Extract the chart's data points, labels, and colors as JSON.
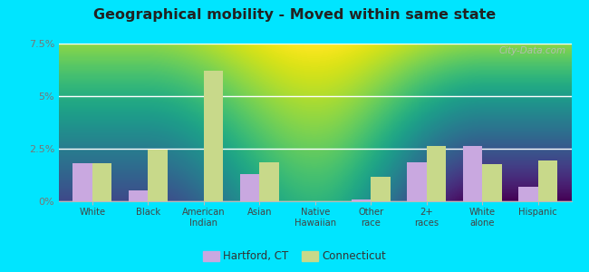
{
  "title": "Geographical mobility - Moved within same state",
  "categories": [
    "White",
    "Black",
    "American\nIndian",
    "Asian",
    "Native\nHawaiian",
    "Other\nrace",
    "2+\nraces",
    "White\nalone",
    "Hispanic"
  ],
  "hartford_values": [
    1.8,
    0.5,
    0.0,
    1.3,
    0.0,
    0.1,
    1.85,
    2.65,
    0.7
  ],
  "connecticut_values": [
    1.8,
    2.45,
    6.2,
    1.85,
    0.0,
    1.15,
    2.65,
    1.75,
    1.95
  ],
  "hartford_color": "#c9a8e0",
  "connecticut_color": "#c8d98a",
  "ylim": [
    0,
    7.5
  ],
  "yticks": [
    0,
    2.5,
    5.0,
    7.5
  ],
  "ytick_labels": [
    "0%",
    "2.5%",
    "5%",
    "7.5%"
  ],
  "outer_background": "#00e5ff",
  "watermark": "City-Data.com",
  "legend_hartford": "Hartford, CT",
  "legend_connecticut": "Connecticut",
  "bar_width": 0.35,
  "bg_top_color": "#f0faf0",
  "bg_bottom_color": "#d4ecc8"
}
